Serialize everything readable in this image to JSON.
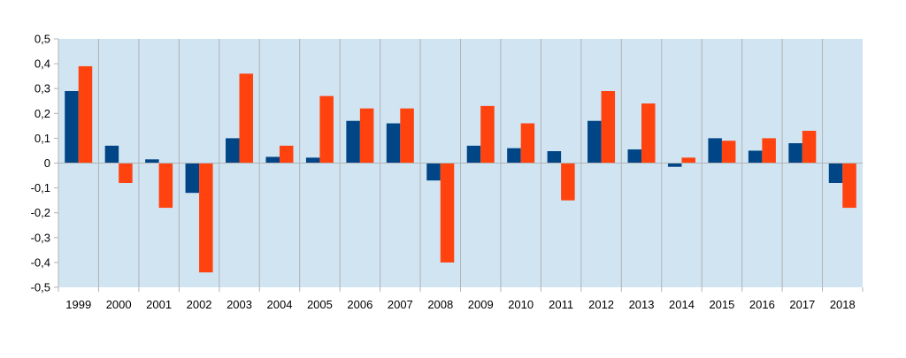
{
  "chart_data": {
    "type": "bar",
    "categories": [
      "1999",
      "2000",
      "2001",
      "2002",
      "2003",
      "2004",
      "2005",
      "2006",
      "2007",
      "2008",
      "2009",
      "2010",
      "2011",
      "2012",
      "2013",
      "2014",
      "2015",
      "2016",
      "2017",
      "2018"
    ],
    "series": [
      {
        "values": [
          0.29,
          0.07,
          0.015,
          -0.12,
          0.1,
          0.025,
          0.022,
          0.17,
          0.16,
          -0.07,
          0.07,
          0.06,
          0.048,
          0.17,
          0.055,
          -0.015,
          0.1,
          0.05,
          0.08,
          -0.08
        ]
      },
      {
        "values": [
          0.39,
          -0.08,
          -0.18,
          -0.44,
          0.36,
          0.07,
          0.27,
          0.22,
          0.22,
          -0.4,
          0.23,
          0.16,
          -0.15,
          0.29,
          0.24,
          0.022,
          0.09,
          0.1,
          0.13,
          -0.18
        ]
      }
    ],
    "ylim": [
      -0.5,
      0.5
    ],
    "yticks": [
      0.5,
      0.4,
      0.3,
      0.2,
      0.1,
      0,
      -0.1,
      -0.2,
      -0.3,
      -0.4,
      -0.5
    ],
    "ytick_labels": [
      "0,5",
      "0,4",
      "0,3",
      "0,2",
      "0,1",
      "0",
      "-0,1",
      "-0,2",
      "-0,3",
      "-0,4",
      "-0,5"
    ],
    "title": "",
    "xlabel": "",
    "ylabel": "",
    "grid": "vertical category separators",
    "legend": "none",
    "colors": {
      "plot_background": "#d0e4f2",
      "series_1": "#004586",
      "series_2": "#ff420e",
      "gridline": "#b3b3b3",
      "axis": "#b3b3b3"
    }
  }
}
